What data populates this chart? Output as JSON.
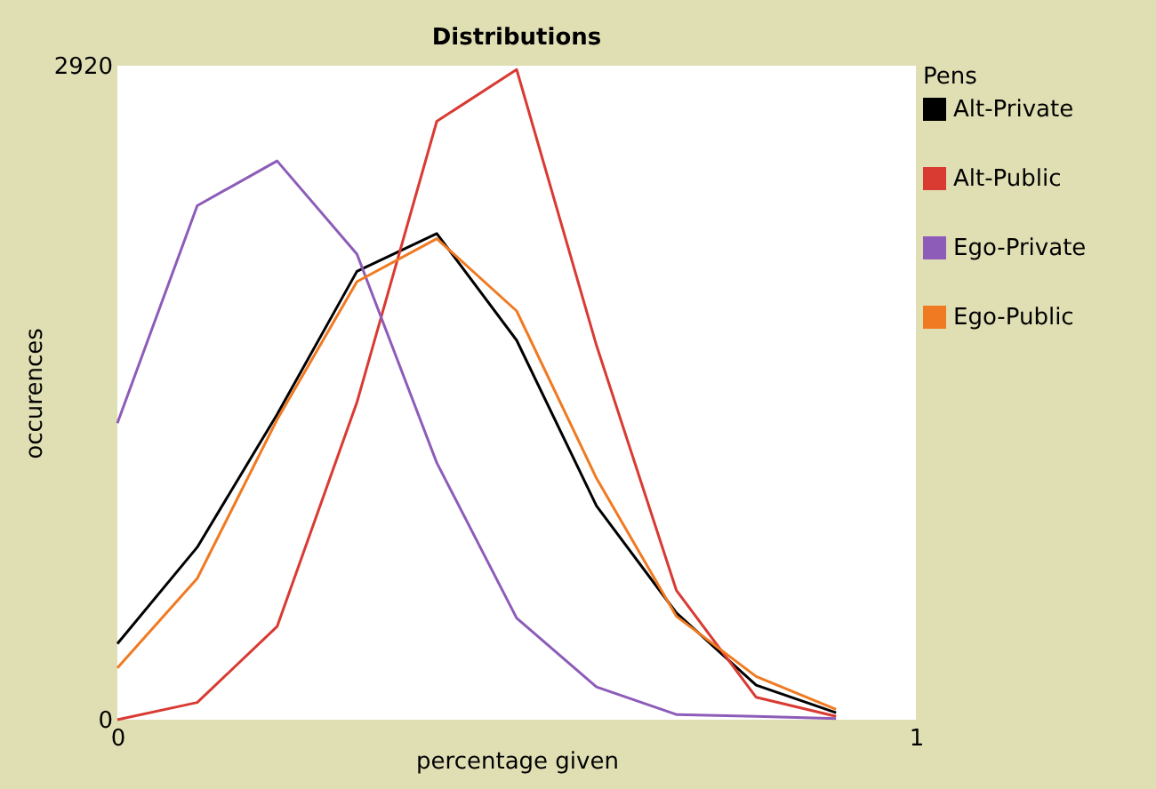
{
  "chart_data": {
    "type": "line",
    "title": "Distributions",
    "xlabel": "percentage given",
    "ylabel": "occurences",
    "legend_title": "Pens",
    "legend": "right",
    "x": [
      0,
      0.1,
      0.2,
      0.3,
      0.4,
      0.5,
      0.6,
      0.7,
      0.8,
      0.9
    ],
    "xlim": [
      0,
      1
    ],
    "xticks": [
      0,
      1
    ],
    "ylim": [
      0,
      2920
    ],
    "yticks": [
      0,
      2920
    ],
    "grid": false,
    "series": [
      {
        "name": "Alt-Private",
        "color": "#000000",
        "values": [
          339,
          770,
          1363,
          2002,
          2171,
          1694,
          955,
          477,
          154,
          31
        ]
      },
      {
        "name": "Alt-Public",
        "color": "#d93a32",
        "values": [
          0,
          77,
          416,
          1417,
          2672,
          2903,
          1671,
          578,
          100,
          15
        ]
      },
      {
        "name": "Ego-Private",
        "color": "#8d5cb8",
        "values": [
          1324,
          2295,
          2495,
          2079,
          1147,
          454,
          146,
          23,
          15,
          5
        ]
      },
      {
        "name": "Ego-Public",
        "color": "#f07a22",
        "values": [
          231,
          631,
          1340,
          1956,
          2148,
          1825,
          1078,
          462,
          193,
          46
        ]
      }
    ]
  }
}
